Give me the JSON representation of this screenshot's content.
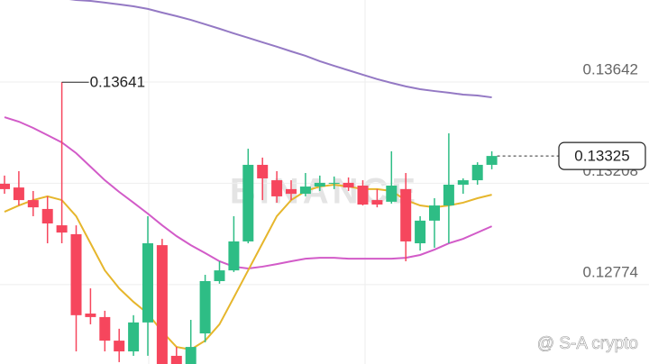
{
  "chart_data": {
    "type": "candlestick",
    "ylim": [
      0.12434,
      0.13993
    ],
    "yticks": [
      0.12774,
      0.13208,
      0.13642
    ],
    "grid": true,
    "up_color": "#2ebd85",
    "down_color": "#f6465d",
    "open": [
      0.13206,
      0.1319,
      0.13136,
      0.13098,
      0.13028,
      0.1299,
      0.1265,
      0.12635,
      0.12534,
      0.12488,
      0.12612,
      0.12943,
      0.12469,
      0.12434,
      0.12565,
      0.12789,
      0.12835,
      0.12959,
      0.13287,
      0.13221,
      0.13183,
      0.13163,
      0.13194,
      0.13206,
      0.1321,
      0.13198,
      0.13136,
      0.13129,
      0.13183,
      0.12951,
      0.13048,
      0.13113,
      0.13202,
      0.13221,
      0.13287
    ],
    "high": [
      0.13241,
      0.1326,
      0.13175,
      0.13152,
      0.13641,
      0.13028,
      0.12758,
      0.12662,
      0.12585,
      0.12643,
      0.13067,
      0.1297,
      0.12507,
      0.12623,
      0.12816,
      0.12874,
      0.13067,
      0.13356,
      0.13318,
      0.1326,
      0.13221,
      0.13252,
      0.13241,
      0.13237,
      0.13233,
      0.13221,
      0.13183,
      0.13345,
      0.13252,
      0.13067,
      0.13144,
      0.13422,
      0.13229,
      0.13298,
      0.13345
    ],
    "low": [
      0.13163,
      0.13113,
      0.13067,
      0.12951,
      0.12951,
      0.12488,
      0.12604,
      0.12488,
      0.12442,
      0.12469,
      0.12469,
      0.12434,
      0.12434,
      0.12434,
      0.12527,
      0.12778,
      0.12828,
      0.12951,
      0.13136,
      0.13125,
      0.13136,
      0.13152,
      0.13175,
      0.13183,
      0.13175,
      0.13113,
      0.13105,
      0.13121,
      0.12874,
      0.1292,
      0.12932,
      0.12951,
      0.13163,
      0.13202,
      0.13268
    ],
    "close": [
      0.13183,
      0.13136,
      0.13105,
      0.13036,
      0.12997,
      0.12643,
      0.12635,
      0.12534,
      0.12488,
      0.12612,
      0.12951,
      0.12434,
      0.12434,
      0.12507,
      0.12789,
      0.12835,
      0.12959,
      0.13287,
      0.13229,
      0.13152,
      0.13163,
      0.13194,
      0.1321,
      0.1321,
      0.1319,
      0.13117,
      0.13117,
      0.13198,
      0.12959,
      0.13048,
      0.13113,
      0.13202,
      0.13221,
      0.13287,
      0.13325
    ],
    "series": [
      {
        "color": "#9479c4",
        "values": [
          0.14051,
          0.1404,
          0.14028,
          0.14013,
          0.14001,
          0.13993,
          0.13989,
          0.13982,
          0.13974,
          0.13966,
          0.13955,
          0.13939,
          0.13924,
          0.13908,
          0.13889,
          0.1387,
          0.1385,
          0.13831,
          0.13812,
          0.13793,
          0.13773,
          0.13754,
          0.13731,
          0.13711,
          0.13692,
          0.13673,
          0.13654,
          0.13638,
          0.13623,
          0.13611,
          0.13603,
          0.13596,
          0.13588,
          0.13584,
          0.13576
        ]
      },
      {
        "color": "#d25bc8",
        "values": [
          0.13491,
          0.13472,
          0.13445,
          0.13414,
          0.13383,
          0.13337,
          0.13279,
          0.13221,
          0.13171,
          0.13125,
          0.13078,
          0.13028,
          0.12982,
          0.12943,
          0.12909,
          0.12874,
          0.12851,
          0.12843,
          0.12851,
          0.12862,
          0.12874,
          0.12885,
          0.12889,
          0.12889,
          0.12885,
          0.12885,
          0.12885,
          0.12885,
          0.12889,
          0.12901,
          0.12924,
          0.12951,
          0.1297,
          0.12997,
          0.13024
        ]
      },
      {
        "color": "#e6b62c",
        "values": [
          0.13086,
          0.13113,
          0.13136,
          0.13152,
          0.13136,
          0.13067,
          0.12951,
          0.12835,
          0.12758,
          0.127,
          0.1265,
          0.12573,
          0.12507,
          0.12496,
          0.12534,
          0.12604,
          0.12719,
          0.12835,
          0.12951,
          0.13067,
          0.13136,
          0.13175,
          0.13194,
          0.13202,
          0.13194,
          0.13183,
          0.13183,
          0.13175,
          0.13136,
          0.13113,
          0.13105,
          0.13113,
          0.13125,
          0.13144,
          0.13159
        ]
      }
    ],
    "high_label": 0.13641,
    "last_price": 0.13325,
    "watermark": "BINANCE",
    "credit": "@ S-A crypto"
  }
}
